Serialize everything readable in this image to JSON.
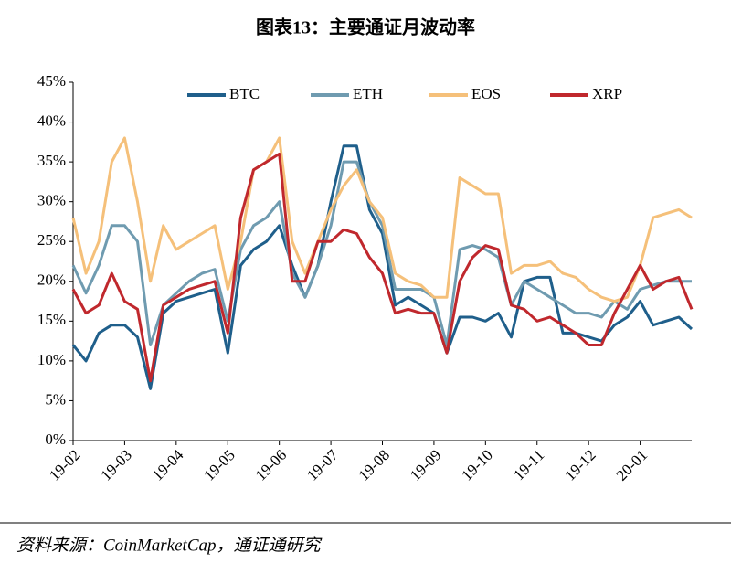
{
  "chart_data": {
    "type": "line",
    "title": "图表13：主要通证月波动率",
    "source": "资料来源：CoinMarketCap，通证通研究",
    "categories": [
      "19-02",
      null,
      null,
      null,
      "19-03",
      null,
      null,
      null,
      "19-04",
      null,
      null,
      null,
      "19-05",
      null,
      null,
      null,
      "19-06",
      null,
      null,
      null,
      "19-07",
      null,
      null,
      null,
      "19-08",
      null,
      null,
      null,
      "19-09",
      null,
      null,
      null,
      "19-10",
      null,
      null,
      null,
      "19-11",
      null,
      null,
      null,
      "19-12",
      null,
      null,
      null,
      "20-01",
      null,
      null,
      null,
      null
    ],
    "series": [
      {
        "name": "BTC",
        "color": "#1f5f8b",
        "values": [
          12,
          10,
          13.5,
          14.5,
          14.5,
          13,
          6.5,
          16,
          17.5,
          18,
          18.5,
          19,
          11,
          22,
          24,
          25,
          27,
          22,
          18,
          22,
          30,
          37,
          37,
          29,
          26,
          17,
          18,
          17,
          16,
          11,
          15.5,
          15.5,
          15,
          16,
          13,
          20,
          20.5,
          20.5,
          13.5,
          13.5,
          13,
          12.5,
          14.5,
          15.5,
          17.5,
          14.5,
          15,
          15.5,
          14
        ]
      },
      {
        "name": "ETH",
        "color": "#6f9bb0",
        "values": [
          22,
          18.5,
          22,
          27,
          27,
          25,
          12,
          17,
          18.5,
          20,
          21,
          21.5,
          15,
          24,
          27,
          28,
          30,
          21,
          18,
          22,
          27,
          35,
          35,
          30,
          27,
          19,
          19,
          19,
          18,
          12,
          24,
          24.5,
          24,
          23,
          17,
          20,
          19,
          18,
          17,
          16,
          16,
          15.5,
          17.5,
          16.5,
          19,
          19.5,
          20,
          20,
          20
        ]
      },
      {
        "name": "EOS",
        "color": "#f5c07a",
        "values": [
          28,
          21,
          25,
          35,
          38,
          30,
          20,
          27,
          24,
          25,
          26,
          27,
          19,
          25,
          34,
          35,
          38,
          25,
          21,
          25,
          29,
          32,
          34,
          30,
          28,
          21,
          20,
          19.5,
          18,
          18,
          33,
          32,
          31,
          31,
          21,
          22,
          22,
          22.5,
          21,
          20.5,
          19,
          18,
          17.5,
          18,
          22,
          28,
          28.5,
          29,
          28
        ]
      },
      {
        "name": "XRP",
        "color": "#c0282d",
        "values": [
          19,
          16,
          17,
          21,
          17.5,
          16.5,
          7.5,
          17,
          18,
          19,
          19.5,
          20,
          13.5,
          28,
          34,
          35,
          36,
          20,
          20,
          25,
          25,
          26.5,
          26,
          23,
          21,
          16,
          16.5,
          16,
          16,
          11,
          20,
          23,
          24.5,
          24,
          17,
          16.5,
          15,
          15.5,
          14.5,
          13.5,
          12,
          12,
          16,
          19,
          22,
          19,
          20,
          20.5,
          16.5
        ]
      }
    ],
    "ylim": [
      0,
      45
    ],
    "yticks": [
      {
        "value": 0,
        "label": "0%"
      },
      {
        "value": 5,
        "label": "5%"
      },
      {
        "value": 10,
        "label": "10%"
      },
      {
        "value": 15,
        "label": "15%"
      },
      {
        "value": 20,
        "label": "20%"
      },
      {
        "value": 25,
        "label": "25%"
      },
      {
        "value": 30,
        "label": "30%"
      },
      {
        "value": 35,
        "label": "35%"
      },
      {
        "value": 40,
        "label": "40%"
      },
      {
        "value": 45,
        "label": "45%"
      }
    ],
    "grid": false,
    "legend": "top"
  }
}
